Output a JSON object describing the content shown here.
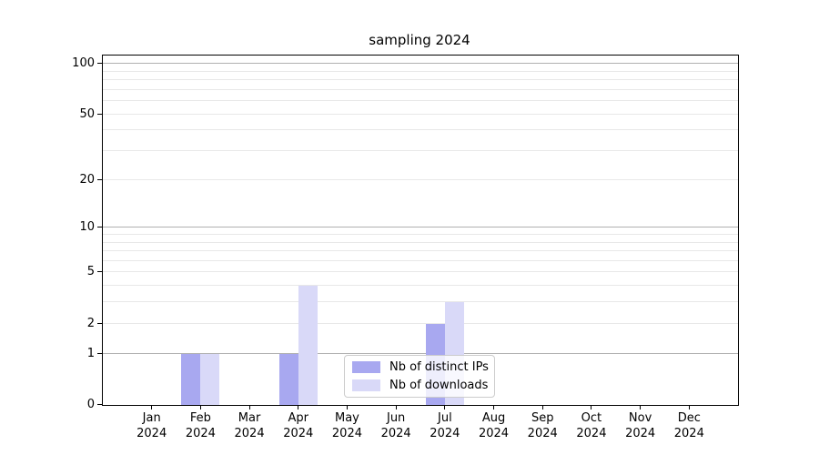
{
  "chart_data": {
    "type": "bar",
    "title": "sampling 2024",
    "categories": [
      "Jan",
      "Feb",
      "Mar",
      "Apr",
      "May",
      "Jun",
      "Jul",
      "Aug",
      "Sep",
      "Oct",
      "Nov",
      "Dec"
    ],
    "x_year_label": "2024",
    "series": [
      {
        "name": "Nb of distinct IPs",
        "color": "#a8a8f0",
        "values": [
          0,
          1,
          0,
          1,
          0,
          0,
          2,
          0,
          0,
          0,
          0,
          0
        ]
      },
      {
        "name": "Nb of downloads",
        "color": "#d9d9f8",
        "values": [
          0,
          1,
          0,
          4,
          0,
          0,
          3,
          0,
          0,
          0,
          0,
          0
        ]
      }
    ],
    "xlabel": "",
    "ylabel": "",
    "yscale": "log1p",
    "ylim": [
      0,
      112
    ],
    "yticks": [
      0,
      1,
      2,
      5,
      10,
      20,
      50,
      100
    ],
    "grid": "on",
    "grid_major": [
      1,
      10,
      100
    ],
    "grid_minor": [
      2,
      3,
      4,
      5,
      6,
      7,
      8,
      9,
      20,
      30,
      40,
      50,
      60,
      70,
      80,
      90
    ],
    "legend_position": "lower center"
  },
  "colors": {
    "grid_major": "#b0b0b0",
    "grid_minor": "#e8e8e8",
    "axis": "#000000",
    "background": "#ffffff",
    "legend_border": "#cccccc"
  }
}
